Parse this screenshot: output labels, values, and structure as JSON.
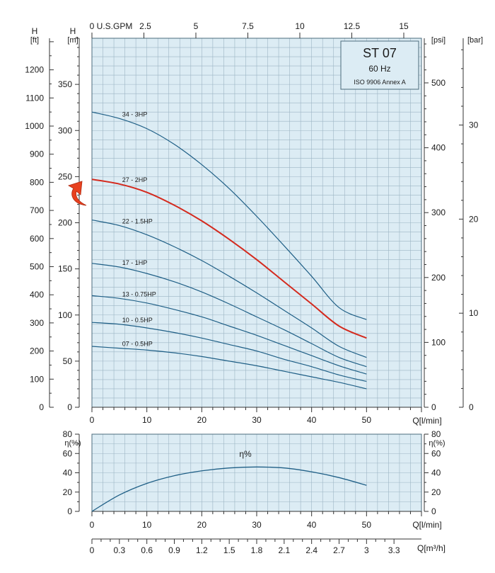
{
  "chart_data": [
    {
      "type": "line",
      "title": "ST 07",
      "subtitle": "60 Hz",
      "standard": "ISO 9906 Annex A",
      "xlabel": "Q[l/min]",
      "x_ticks": [
        0,
        10,
        20,
        30,
        40,
        50
      ],
      "xlim": [
        0,
        60
      ],
      "top_axis": {
        "label": "U.S.GPM",
        "ticks": [
          "0",
          "2.5",
          "5",
          "7.5",
          "10",
          "12.5",
          "15"
        ]
      },
      "ylabel_m": {
        "unit": "[m]",
        "quantity": "H"
      },
      "ylabel_ft": {
        "unit": "[ft]",
        "quantity": "H"
      },
      "ylabel_psi": "[psi]",
      "ylabel_bar": "[bar]",
      "ylim": [
        0,
        400
      ],
      "y_ticks_m": [
        0,
        50,
        100,
        150,
        200,
        250,
        300,
        350
      ],
      "y_ticks_ft": [
        0,
        100,
        200,
        300,
        400,
        500,
        600,
        700,
        800,
        900,
        1000,
        1100,
        1200
      ],
      "y_ticks_psi": [
        0,
        100,
        200,
        300,
        400,
        500
      ],
      "y_ticks_bar": [
        0,
        10,
        20,
        30
      ],
      "x": [
        0,
        5,
        10,
        15,
        20,
        25,
        30,
        35,
        40,
        45,
        50
      ],
      "series": [
        {
          "name": "34 - 3HP",
          "color": "#1f5f86",
          "highlight": false,
          "values": [
            320,
            313,
            302,
            285,
            263,
            237,
            207,
            175,
            142,
            108,
            95
          ]
        },
        {
          "name": "27 - 2HP",
          "color": "#d42a1e",
          "highlight": true,
          "values": [
            247,
            242,
            233,
            219,
            202,
            182,
            160,
            136,
            112,
            88,
            75
          ]
        },
        {
          "name": "22 - 1.5HP",
          "color": "#1f5f86",
          "highlight": false,
          "values": [
            203,
            197,
            187,
            174,
            159,
            142,
            124,
            105,
            86,
            66,
            54
          ]
        },
        {
          "name": "17 - 1HP",
          "color": "#1f5f86",
          "highlight": false,
          "values": [
            156,
            152,
            145,
            136,
            125,
            112,
            98,
            84,
            69,
            54,
            44
          ]
        },
        {
          "name": "13 - 0.75HP",
          "color": "#1f5f86",
          "highlight": false,
          "values": [
            121,
            118,
            113,
            106,
            98,
            88,
            78,
            67,
            56,
            45,
            36
          ]
        },
        {
          "name": "10 - 0.5HP",
          "color": "#1f5f86",
          "highlight": false,
          "values": [
            92,
            90,
            86,
            81,
            75,
            68,
            61,
            52,
            44,
            35,
            28
          ]
        },
        {
          "name": "07 - 0.5HP",
          "color": "#1f5f86",
          "highlight": false,
          "values": [
            66,
            64,
            62,
            59,
            55,
            50,
            45,
            39,
            33,
            27,
            20
          ]
        }
      ],
      "highlight_marker": "red-curved-arrow"
    },
    {
      "type": "line",
      "title": "η%",
      "ylabel": "η(%)",
      "ylim": [
        0,
        80
      ],
      "y_ticks": [
        0,
        20,
        40,
        60,
        80
      ],
      "xlabel": "Q[l/min]",
      "x_ticks": [
        0,
        10,
        20,
        30,
        40,
        50
      ],
      "x": [
        0,
        5,
        10,
        15,
        20,
        25,
        30,
        35,
        40,
        45,
        50
      ],
      "series": [
        {
          "name": "η%",
          "color": "#1f5f86",
          "values": [
            0,
            17,
            29,
            37,
            42,
            45,
            46,
            45,
            41,
            35,
            27
          ]
        }
      ],
      "bottom_axis": {
        "label": "Q[m³/h]",
        "ticks": [
          "0",
          "0.3",
          "0.6",
          "0.9",
          "1.2",
          "1.5",
          "1.8",
          "2.1",
          "2.4",
          "2.7",
          "3",
          "3.3"
        ]
      }
    }
  ],
  "colors": {
    "plot_bg": "#dcecf4",
    "grid": "#9cb5c4",
    "legend_bg": "#dcecf4",
    "curve": "#1f5f86",
    "highlight": "#d42a1e",
    "arrow": "#e8411f"
  }
}
